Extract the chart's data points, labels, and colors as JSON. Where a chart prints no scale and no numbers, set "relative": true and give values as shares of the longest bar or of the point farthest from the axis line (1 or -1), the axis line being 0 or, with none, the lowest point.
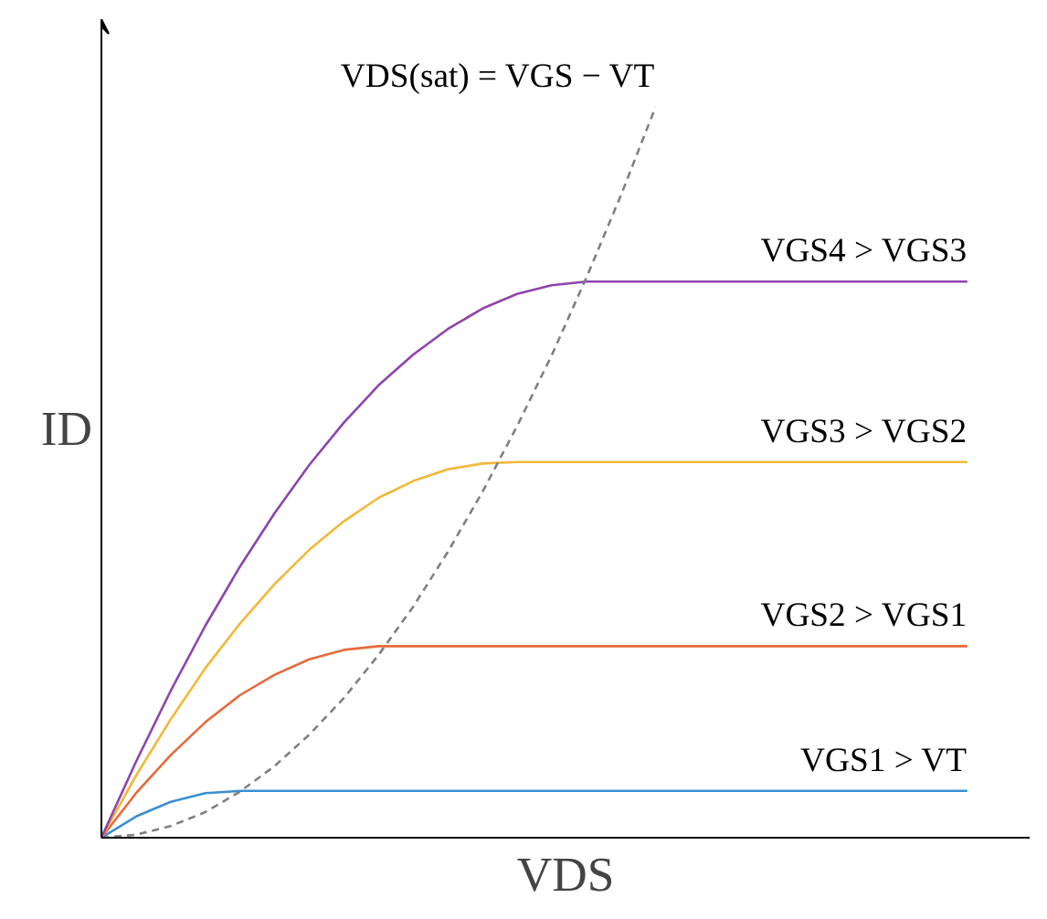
{
  "chart_data": {
    "type": "line",
    "relative": true,
    "xlabel": "VDS",
    "ylabel": "ID",
    "categories": [
      null,
      null,
      null,
      null,
      null,
      null,
      null,
      null,
      null,
      null,
      null,
      null,
      null,
      null,
      null,
      null,
      null,
      null,
      null,
      null,
      null,
      null,
      null,
      null,
      null,
      null
    ],
    "series": [
      {
        "name": "VGS1 > VT",
        "color": "#3a8fd1",
        "values": [
          0,
          0.029,
          0.049,
          0.061,
          0.064,
          0.064,
          0.064,
          0.064,
          0.064,
          0.064,
          0.064,
          0.064,
          0.064,
          0.064,
          0.064,
          0.064,
          0.064,
          0.064,
          0.064,
          0.064,
          0.064,
          0.064,
          0.064,
          0.064,
          0.064,
          0.064
        ]
      },
      {
        "name": "VGS2 > VGS1",
        "color": "#e8693a",
        "values": [
          0,
          0.061,
          0.113,
          0.158,
          0.195,
          0.223,
          0.244,
          0.257,
          0.262,
          0.262,
          0.262,
          0.262,
          0.262,
          0.262,
          0.262,
          0.262,
          0.262,
          0.262,
          0.262,
          0.262,
          0.262,
          0.262,
          0.262,
          0.262,
          0.262,
          0.262
        ]
      },
      {
        "name": "VGS3 > VGS2",
        "color": "#f2b83a",
        "values": [
          0,
          0.085,
          0.162,
          0.232,
          0.293,
          0.347,
          0.394,
          0.433,
          0.465,
          0.488,
          0.504,
          0.512,
          0.514,
          0.514,
          0.514,
          0.514,
          0.514,
          0.514,
          0.514,
          0.514,
          0.514,
          0.514,
          0.514,
          0.514,
          0.514,
          0.514
        ]
      },
      {
        "name": "VGS4 > VGS3",
        "color": "#8e44ad",
        "values": [
          0,
          0.104,
          0.201,
          0.29,
          0.371,
          0.444,
          0.51,
          0.568,
          0.619,
          0.661,
          0.696,
          0.724,
          0.744,
          0.756,
          0.761,
          0.761,
          0.761,
          0.761,
          0.761,
          0.761,
          0.761,
          0.761,
          0.761,
          0.761,
          0.761,
          0.761
        ]
      },
      {
        "name": "VDS(sat) = VGS − VT",
        "color": "#808080",
        "line_style": "dashed",
        "values": [
          0,
          0.004,
          0.016,
          0.035,
          0.063,
          0.098,
          0.141,
          0.191,
          0.25,
          0.316,
          0.391,
          0.473,
          0.563,
          0.66,
          0.766,
          0.879,
          1,
          null,
          null,
          null,
          null,
          null,
          null,
          null,
          null,
          null
        ]
      }
    ]
  }
}
